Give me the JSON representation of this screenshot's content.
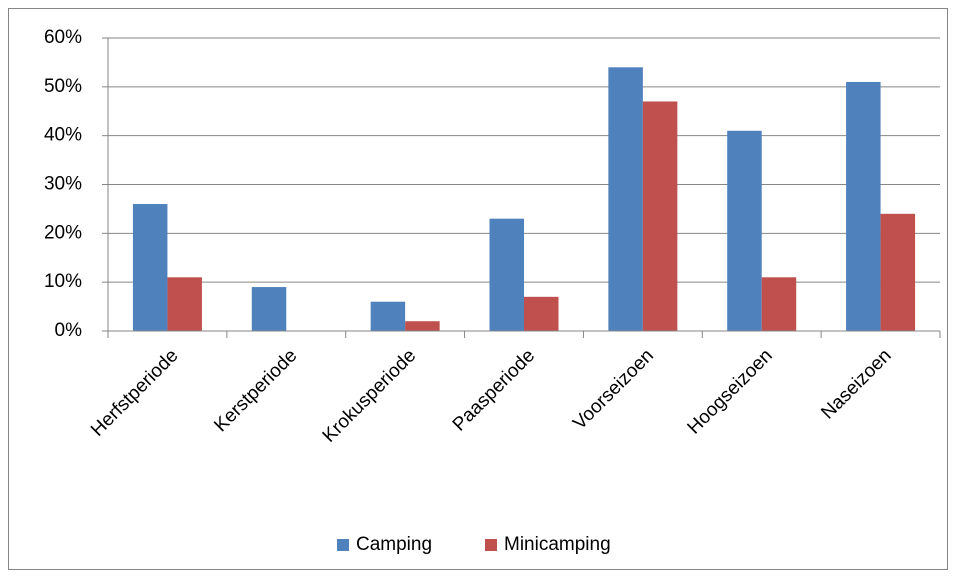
{
  "chart_data": {
    "type": "bar",
    "categories": [
      "Herfstperiode",
      "Kerstperiode",
      "Krokusperiode",
      "Paasperiode",
      "Voorseizoen",
      "Hoogseizoen",
      "Naseizoen"
    ],
    "series": [
      {
        "name": "Camping",
        "color": "#4f81bd",
        "values": [
          26,
          9,
          6,
          23,
          54,
          41,
          51
        ]
      },
      {
        "name": "Minicamping",
        "color": "#c0504d",
        "values": [
          11,
          0,
          2,
          7,
          47,
          11,
          24
        ]
      }
    ],
    "ylim": [
      0,
      60
    ],
    "yticks": [
      {
        "value": 0,
        "label": "0%"
      },
      {
        "value": 10,
        "label": "10%"
      },
      {
        "value": 20,
        "label": "20%"
      },
      {
        "value": 30,
        "label": "30%"
      },
      {
        "value": 40,
        "label": "40%"
      },
      {
        "value": 50,
        "label": "50%"
      },
      {
        "value": 60,
        "label": "60%"
      }
    ],
    "grid": true,
    "legend": "bottom"
  }
}
